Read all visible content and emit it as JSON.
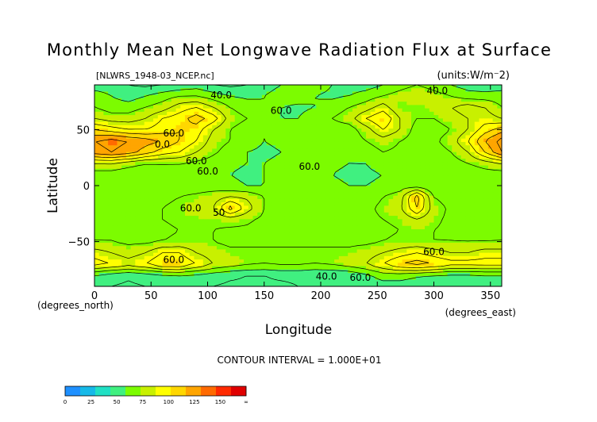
{
  "chart_data": {
    "type": "heatmap",
    "title": "Monthly Mean Net Longwave Radiation Flux at Surface",
    "subtitle_left": "[NLWRS_1948-03_NCEP.nc]",
    "subtitle_right": "(units:W/m⁻2)",
    "xlabel": "Longitude",
    "ylabel": "Latitude",
    "x_units": "(degrees_east)",
    "y_units": "(degrees_north)",
    "xlim": [
      0,
      360
    ],
    "ylim": [
      -90,
      90
    ],
    "x_ticks": [
      0,
      50,
      100,
      150,
      200,
      250,
      300,
      350
    ],
    "y_ticks": [
      -50,
      0,
      50
    ],
    "contour_interval_label": "CONTOUR INTERVAL = 1.000E+01",
    "contour_labels": [
      {
        "text": "40.0",
        "lon": 112,
        "lat": 78
      },
      {
        "text": "60.0",
        "lon": 165,
        "lat": 64
      },
      {
        "text": "60.0",
        "lon": 70,
        "lat": 44
      },
      {
        "text": "0.0",
        "lon": 60,
        "lat": 34
      },
      {
        "text": "60.0",
        "lon": 90,
        "lat": 19
      },
      {
        "text": "60.0",
        "lon": 100,
        "lat": 10
      },
      {
        "text": "60.0",
        "lon": 190,
        "lat": 14
      },
      {
        "text": "60.0",
        "lon": 85,
        "lat": -23
      },
      {
        "text": "50",
        "lon": 110,
        "lat": -27
      },
      {
        "text": "60.0",
        "lon": 300,
        "lat": -62
      },
      {
        "text": "60.0",
        "lon": 70,
        "lat": -69
      },
      {
        "text": "40.0",
        "lon": 205,
        "lat": -84
      },
      {
        "text": "60.0",
        "lon": 235,
        "lat": -85
      },
      {
        "text": "40.0",
        "lon": 303,
        "lat": 82
      }
    ],
    "colorbar": {
      "colors": [
        "#1e90ff",
        "#16b9e8",
        "#20e0c4",
        "#40f080",
        "#7cfc00",
        "#c8f000",
        "#ffff00",
        "#ffd700",
        "#ffa500",
        "#ff6a00",
        "#ff2a00",
        "#e00000"
      ],
      "tick_labels": [
        "0",
        "25",
        "50",
        "75",
        "100",
        "125",
        "150",
        "∞"
      ]
    },
    "field": {
      "grid": "10 deg lat rows from 90 to -90 (19 rows) x 15 deg lon cols from 0 to 360 (25 cols), W/m2",
      "values": [
        [
          45,
          45,
          40,
          38,
          40,
          42,
          45,
          40,
          38,
          40,
          45,
          50,
          55,
          55,
          50,
          45,
          45,
          50,
          55,
          60,
          55,
          50,
          45,
          42,
          45
        ],
        [
          55,
          50,
          45,
          50,
          55,
          60,
          60,
          55,
          50,
          48,
          50,
          55,
          55,
          50,
          48,
          50,
          55,
          60,
          65,
          70,
          65,
          60,
          55,
          55,
          55
        ],
        [
          60,
          55,
          55,
          60,
          65,
          75,
          80,
          70,
          60,
          55,
          50,
          50,
          48,
          50,
          55,
          60,
          65,
          75,
          60,
          60,
          65,
          70,
          75,
          70,
          60
        ],
        [
          70,
          65,
          65,
          70,
          80,
          85,
          95,
          85,
          65,
          60,
          55,
          50,
          50,
          55,
          60,
          65,
          80,
          90,
          70,
          60,
          60,
          65,
          70,
          75,
          70
        ],
        [
          90,
          85,
          80,
          80,
          85,
          90,
          85,
          70,
          60,
          55,
          50,
          55,
          60,
          60,
          55,
          55,
          65,
          80,
          70,
          55,
          55,
          60,
          70,
          85,
          95
        ],
        [
          110,
          115,
          110,
          105,
          100,
          90,
          80,
          65,
          60,
          55,
          50,
          52,
          55,
          55,
          52,
          55,
          60,
          65,
          60,
          55,
          58,
          65,
          80,
          100,
          115
        ],
        [
          105,
          110,
          105,
          95,
          85,
          80,
          70,
          62,
          55,
          50,
          48,
          50,
          52,
          52,
          50,
          52,
          55,
          60,
          58,
          55,
          55,
          60,
          70,
          90,
          110
        ],
        [
          70,
          70,
          65,
          60,
          60,
          60,
          58,
          55,
          52,
          50,
          50,
          52,
          55,
          55,
          52,
          50,
          50,
          55,
          55,
          52,
          52,
          55,
          60,
          65,
          70
        ],
        [
          55,
          55,
          52,
          52,
          55,
          55,
          55,
          52,
          50,
          48,
          50,
          52,
          52,
          52,
          50,
          48,
          48,
          50,
          52,
          52,
          50,
          52,
          52,
          55,
          55
        ],
        [
          52,
          52,
          50,
          52,
          55,
          55,
          55,
          55,
          52,
          50,
          50,
          52,
          55,
          55,
          52,
          50,
          50,
          52,
          55,
          55,
          50,
          50,
          52,
          52,
          52
        ],
        [
          55,
          55,
          52,
          55,
          58,
          60,
          62,
          65,
          70,
          68,
          60,
          55,
          55,
          55,
          52,
          52,
          55,
          60,
          65,
          95,
          60,
          55,
          55,
          55,
          55
        ],
        [
          60,
          58,
          55,
          58,
          60,
          62,
          65,
          70,
          95,
          75,
          60,
          55,
          55,
          55,
          55,
          55,
          58,
          62,
          68,
          90,
          65,
          58,
          55,
          58,
          60
        ],
        [
          60,
          58,
          55,
          58,
          60,
          62,
          62,
          62,
          65,
          62,
          58,
          55,
          55,
          55,
          55,
          55,
          58,
          60,
          62,
          70,
          62,
          58,
          55,
          58,
          60
        ],
        [
          58,
          58,
          55,
          55,
          58,
          60,
          60,
          60,
          58,
          58,
          55,
          55,
          55,
          55,
          55,
          55,
          55,
          58,
          60,
          62,
          60,
          58,
          55,
          55,
          58
        ],
        [
          60,
          60,
          58,
          58,
          60,
          62,
          62,
          60,
          58,
          58,
          58,
          58,
          58,
          58,
          58,
          58,
          58,
          60,
          62,
          62,
          60,
          60,
          60,
          60,
          60
        ],
        [
          75,
          70,
          65,
          70,
          80,
          80,
          70,
          65,
          62,
          62,
          62,
          62,
          62,
          62,
          62,
          62,
          65,
          70,
          75,
          80,
          75,
          70,
          70,
          75,
          75
        ],
        [
          85,
          80,
          75,
          80,
          90,
          90,
          80,
          70,
          65,
          62,
          60,
          62,
          62,
          60,
          62,
          65,
          70,
          80,
          90,
          95,
          90,
          85,
          85,
          85,
          85
        ],
        [
          50,
          45,
          42,
          45,
          48,
          50,
          48,
          45,
          42,
          40,
          40,
          42,
          42,
          40,
          40,
          42,
          48,
          55,
          55,
          52,
          50,
          48,
          48,
          50,
          50
        ],
        [
          40,
          40,
          38,
          40,
          42,
          42,
          40,
          40,
          38,
          38,
          38,
          38,
          40,
          40,
          40,
          40,
          42,
          45,
          45,
          42,
          42,
          40,
          40,
          40,
          40
        ]
      ]
    }
  }
}
